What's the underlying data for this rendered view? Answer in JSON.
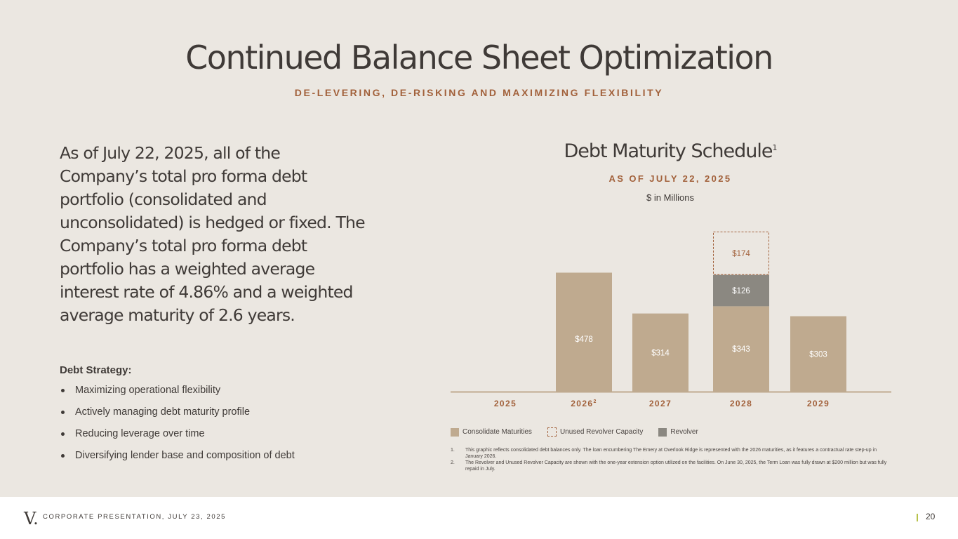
{
  "header": {
    "title": "Continued Balance Sheet Optimization",
    "subtitle": "DE-LEVERING, DE-RISKING AND MAXIMIZING FLEXIBILITY"
  },
  "intro": "As of July 22, 2025, all of the Company’s total pro forma debt portfolio (consolidated and unconsolidated) is hedged or fixed. The Company’s total pro forma debt portfolio has a weighted average interest rate of 4.86% and a weighted average maturity of 2.6 years.",
  "strategy": {
    "title": "Debt Strategy:",
    "items": [
      "Maximizing operational flexibility",
      "Actively managing debt maturity profile",
      "Reducing leverage over time",
      "Diversifying lender base and composition of debt"
    ]
  },
  "chart_header": {
    "title": "Debt Maturity Schedule",
    "title_sup": "1",
    "asof": "AS OF JULY 22, 2025",
    "units": "$ in Millions"
  },
  "colors": {
    "consolidated": "#bfaa8f",
    "revolver": "#8b8881",
    "unused_border": "#a2613b",
    "accent": "#a2613b",
    "text": "#3f3a37"
  },
  "chart_data": {
    "type": "bar",
    "stacked": true,
    "categories": [
      "2025",
      "2026",
      "2027",
      "2028",
      "2029"
    ],
    "category_sup": [
      "",
      "2",
      "",
      "",
      ""
    ],
    "series": [
      {
        "name": "Consolidate Maturities",
        "values": [
          0,
          478,
          314,
          343,
          303
        ],
        "labels": [
          "",
          "$478",
          "$314",
          "$343",
          "$303"
        ]
      },
      {
        "name": "Revolver",
        "values": [
          0,
          0,
          0,
          126,
          0
        ],
        "labels": [
          "",
          "",
          "",
          "$126",
          ""
        ]
      },
      {
        "name": "Unused Revolver Capacity",
        "values": [
          0,
          0,
          0,
          174,
          0
        ],
        "labels": [
          "",
          "",
          "",
          "$174",
          ""
        ]
      }
    ],
    "ylim": [
      0,
      643
    ],
    "grid": false
  },
  "legend": [
    {
      "label": "Consolidate Maturities",
      "style": "solid-tan"
    },
    {
      "label": "Unused Revolver Capacity",
      "style": "dashed"
    },
    {
      "label": "Revolver",
      "style": "solid-gray"
    }
  ],
  "footnotes": [
    {
      "n": "1.",
      "text": "This graphic reflects consolidated debt balances only. The loan encumbering The Emery at Overlook Ridge is represented with the 2026 maturities, as it features a contractual rate step-up in January 2026."
    },
    {
      "n": "2.",
      "text": "The Revolver and Unused Revolver Capacity are shown with the one-year extension option utilized on the facilities. On June 30, 2025, the Term Loan was fully drawn at $200 million but was fully repaid in July."
    }
  ],
  "footer": {
    "logo": "V.",
    "text": "CORPORATE PRESENTATION, JULY 23, 2025",
    "page": "20"
  }
}
